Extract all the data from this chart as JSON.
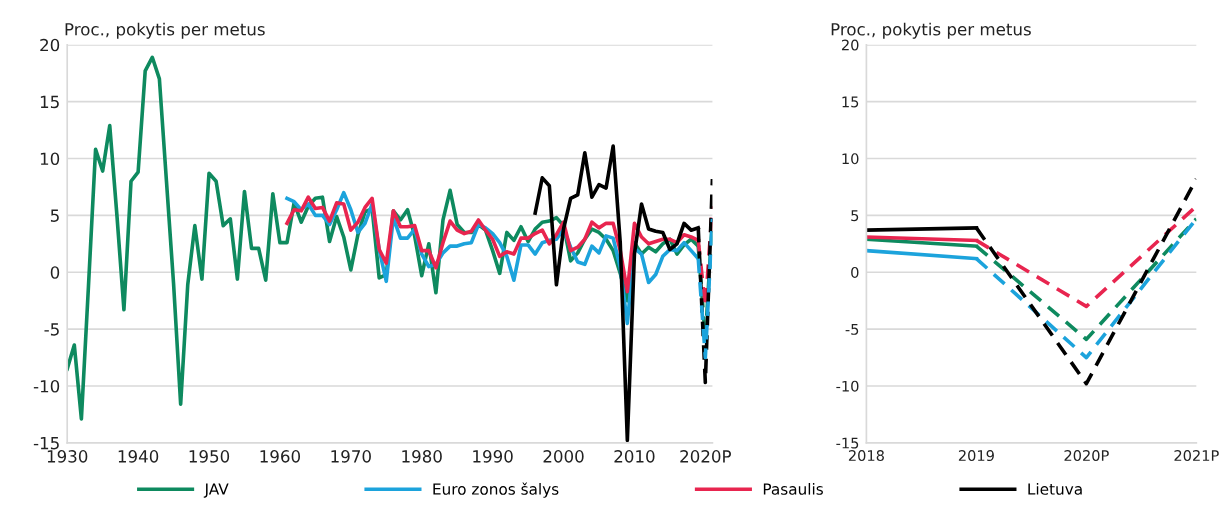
{
  "chart_data": [
    {
      "type": "line",
      "ylabel": "Proc., pokytis per metus",
      "grid": "y",
      "legend": "bottom",
      "line_style": "solid",
      "marker": "none",
      "xlim": [
        1930,
        2021
      ],
      "xticks": [
        1930,
        1940,
        1950,
        1960,
        1970,
        1980,
        1990,
        2000,
        2010,
        {
          "value": 2020,
          "label": "2020P"
        }
      ],
      "ylim": [
        -15,
        20
      ],
      "yticks": [
        -15,
        -10,
        -5,
        0,
        5,
        10,
        15,
        20
      ],
      "series": [
        {
          "name": "JAV",
          "color": "#0e8a5f",
          "x": [
            1930,
            1931,
            1932,
            1933,
            1934,
            1935,
            1936,
            1937,
            1938,
            1939,
            1940,
            1941,
            1942,
            1943,
            1944,
            1945,
            1946,
            1947,
            1948,
            1949,
            1950,
            1951,
            1952,
            1953,
            1954,
            1955,
            1956,
            1957,
            1958,
            1959,
            1960,
            1961,
            1962,
            1963,
            1964,
            1965,
            1966,
            1967,
            1968,
            1969,
            1970,
            1971,
            1972,
            1973,
            1974,
            1975,
            1976,
            1977,
            1978,
            1979,
            1980,
            1981,
            1982,
            1983,
            1984,
            1985,
            1986,
            1987,
            1988,
            1989,
            1990,
            1991,
            1992,
            1993,
            1994,
            1995,
            1996,
            1997,
            1998,
            1999,
            2000,
            2001,
            2002,
            2003,
            2004,
            2005,
            2006,
            2007,
            2008,
            2009,
            2010,
            2011,
            2012,
            2013,
            2014,
            2015,
            2016,
            2017,
            2018,
            2019
          ],
          "values": [
            -8.5,
            -6.4,
            -12.9,
            -1.2,
            10.8,
            8.9,
            12.9,
            5.1,
            -3.3,
            8.0,
            8.8,
            17.7,
            18.9,
            17.0,
            8.0,
            -1.0,
            -11.6,
            -1.1,
            4.1,
            -0.6,
            8.7,
            8.0,
            4.1,
            4.7,
            -0.6,
            7.1,
            2.1,
            2.1,
            -0.7,
            6.9,
            2.6,
            2.6,
            6.1,
            4.4,
            5.8,
            6.5,
            6.6,
            2.7,
            4.9,
            3.1,
            0.2,
            3.3,
            5.3,
            5.6,
            -0.5,
            -0.2,
            5.4,
            4.6,
            5.5,
            3.2,
            -0.3,
            2.5,
            -1.8,
            4.6,
            7.2,
            4.2,
            3.5,
            3.5,
            4.2,
            3.7,
            1.9,
            -0.1,
            3.5,
            2.8,
            4.0,
            2.7,
            3.8,
            4.4,
            4.5,
            4.8,
            4.1,
            1.0,
            1.7,
            2.9,
            3.8,
            3.5,
            2.9,
            1.9,
            -0.1,
            -2.5,
            2.6,
            1.6,
            2.2,
            1.8,
            2.5,
            2.9,
            1.6,
            2.4,
            2.9,
            2.3
          ]
        },
        {
          "name": "Euro zonos šalys",
          "color": "#1ca3dc",
          "x": [
            1961,
            1962,
            1963,
            1964,
            1965,
            1966,
            1967,
            1968,
            1969,
            1970,
            1971,
            1972,
            1973,
            1974,
            1975,
            1976,
            1977,
            1978,
            1979,
            1980,
            1981,
            1982,
            1983,
            1984,
            1985,
            1986,
            1987,
            1988,
            1989,
            1990,
            1991,
            1992,
            1993,
            1994,
            1995,
            1996,
            1997,
            1998,
            1999,
            2000,
            2001,
            2002,
            2003,
            2004,
            2005,
            2006,
            2007,
            2008,
            2009,
            2010,
            2011,
            2012,
            2013,
            2014,
            2015,
            2016,
            2017,
            2018,
            2019
          ],
          "values": [
            6.5,
            6.2,
            5.5,
            6.0,
            5.0,
            5.0,
            4.2,
            5.5,
            7.0,
            5.5,
            3.5,
            4.3,
            6.0,
            2.0,
            -0.8,
            4.8,
            3.0,
            3.0,
            3.8,
            1.6,
            0.5,
            0.7,
            1.7,
            2.3,
            2.3,
            2.5,
            2.6,
            4.2,
            3.9,
            3.4,
            2.6,
            1.4,
            -0.7,
            2.4,
            2.4,
            1.6,
            2.6,
            2.8,
            2.9,
            3.8,
            2.2,
            0.9,
            0.7,
            2.3,
            1.7,
            3.2,
            3.0,
            0.4,
            -4.5,
            2.1,
            1.6,
            -0.9,
            -0.2,
            1.4,
            2.0,
            1.9,
            2.6,
            1.9,
            1.2
          ]
        },
        {
          "name": "Pasaulis",
          "color": "#e8254f",
          "x": [
            1961,
            1962,
            1963,
            1964,
            1965,
            1966,
            1967,
            1968,
            1969,
            1970,
            1971,
            1972,
            1973,
            1974,
            1975,
            1976,
            1977,
            1978,
            1979,
            1980,
            1981,
            1982,
            1983,
            1984,
            1985,
            1986,
            1987,
            1988,
            1989,
            1990,
            1991,
            1992,
            1993,
            1994,
            1995,
            1996,
            1997,
            1998,
            1999,
            2000,
            2001,
            2002,
            2003,
            2004,
            2005,
            2006,
            2007,
            2008,
            2009,
            2010,
            2011,
            2012,
            2013,
            2014,
            2015,
            2016,
            2017,
            2018,
            2019
          ],
          "values": [
            4.3,
            5.5,
            5.4,
            6.6,
            5.6,
            5.7,
            4.5,
            6.1,
            6.0,
            3.7,
            4.4,
            5.7,
            6.5,
            2.0,
            0.8,
            5.4,
            4.0,
            4.0,
            4.1,
            1.9,
            1.9,
            0.4,
            2.6,
            4.5,
            3.7,
            3.4,
            3.6,
            4.6,
            3.7,
            2.9,
            1.4,
            1.8,
            1.6,
            3.0,
            3.0,
            3.4,
            3.7,
            2.5,
            3.3,
            4.4,
            1.9,
            2.2,
            2.9,
            4.4,
            3.9,
            4.3,
            4.3,
            1.9,
            -1.7,
            4.3,
            3.1,
            2.5,
            2.7,
            2.9,
            2.9,
            2.6,
            3.3,
            3.1,
            2.8
          ]
        },
        {
          "name": "Lietuva",
          "color": "#000000",
          "x": [
            1996,
            1997,
            1998,
            1999,
            2000,
            2001,
            2002,
            2003,
            2004,
            2005,
            2006,
            2007,
            2008,
            2009,
            2010,
            2011,
            2012,
            2013,
            2014,
            2015,
            2016,
            2017,
            2018,
            2019
          ],
          "values": [
            5.2,
            8.3,
            7.6,
            -1.1,
            3.8,
            6.5,
            6.8,
            10.5,
            6.6,
            7.7,
            7.4,
            11.1,
            2.6,
            -14.8,
            1.6,
            6.0,
            3.8,
            3.6,
            3.5,
            2.0,
            2.5,
            4.3,
            3.7,
            3.9
          ]
        },
        {
          "color": "#0e8a5f",
          "line_style": "dashed",
          "x": [
            2019,
            2020,
            2021
          ],
          "values": [
            2.3,
            -5.9,
            4.7
          ]
        },
        {
          "color": "#e8254f",
          "line_style": "dashed",
          "x": [
            2019,
            2020,
            2021
          ],
          "values": [
            2.8,
            -3.0,
            5.8
          ]
        },
        {
          "color": "#000000",
          "line_style": "dashed",
          "x": [
            2019,
            2020,
            2021
          ],
          "values": [
            3.9,
            -9.7,
            8.2
          ]
        },
        {
          "color": "#1ca3dc",
          "line_style": "dashed",
          "x": [
            2019,
            2020,
            2021
          ],
          "values": [
            1.2,
            -7.5,
            4.7
          ]
        }
      ]
    },
    {
      "type": "line",
      "ylabel": "Proc., pokytis per metus",
      "grid": "y",
      "line_style": "solid",
      "marker": "none",
      "categories": [
        "2018",
        "2019",
        "2020P",
        "2021P"
      ],
      "ylim": [
        -15,
        20
      ],
      "yticks": [
        -15,
        -10,
        -5,
        0,
        5,
        10,
        15,
        20
      ],
      "series": [
        {
          "color": "#0e8a5f",
          "values": [
            2.9,
            2.3,
            null,
            null
          ]
        },
        {
          "color": "#1ca3dc",
          "values": [
            1.9,
            1.2,
            null,
            null
          ]
        },
        {
          "color": "#e8254f",
          "values": [
            3.1,
            2.8,
            null,
            null
          ]
        },
        {
          "color": "#000000",
          "values": [
            3.7,
            3.9,
            null,
            null
          ]
        },
        {
          "color": "#0e8a5f",
          "line_style": "dashed",
          "values": [
            null,
            2.3,
            -5.9,
            4.7
          ]
        },
        {
          "color": "#1ca3dc",
          "line_style": "dashed",
          "values": [
            null,
            1.2,
            -7.5,
            4.7
          ]
        },
        {
          "color": "#e8254f",
          "line_style": "dashed",
          "values": [
            null,
            2.8,
            -3.0,
            5.8
          ]
        },
        {
          "color": "#000000",
          "line_style": "dashed",
          "values": [
            null,
            3.9,
            -9.8,
            8.2
          ]
        }
      ]
    }
  ]
}
